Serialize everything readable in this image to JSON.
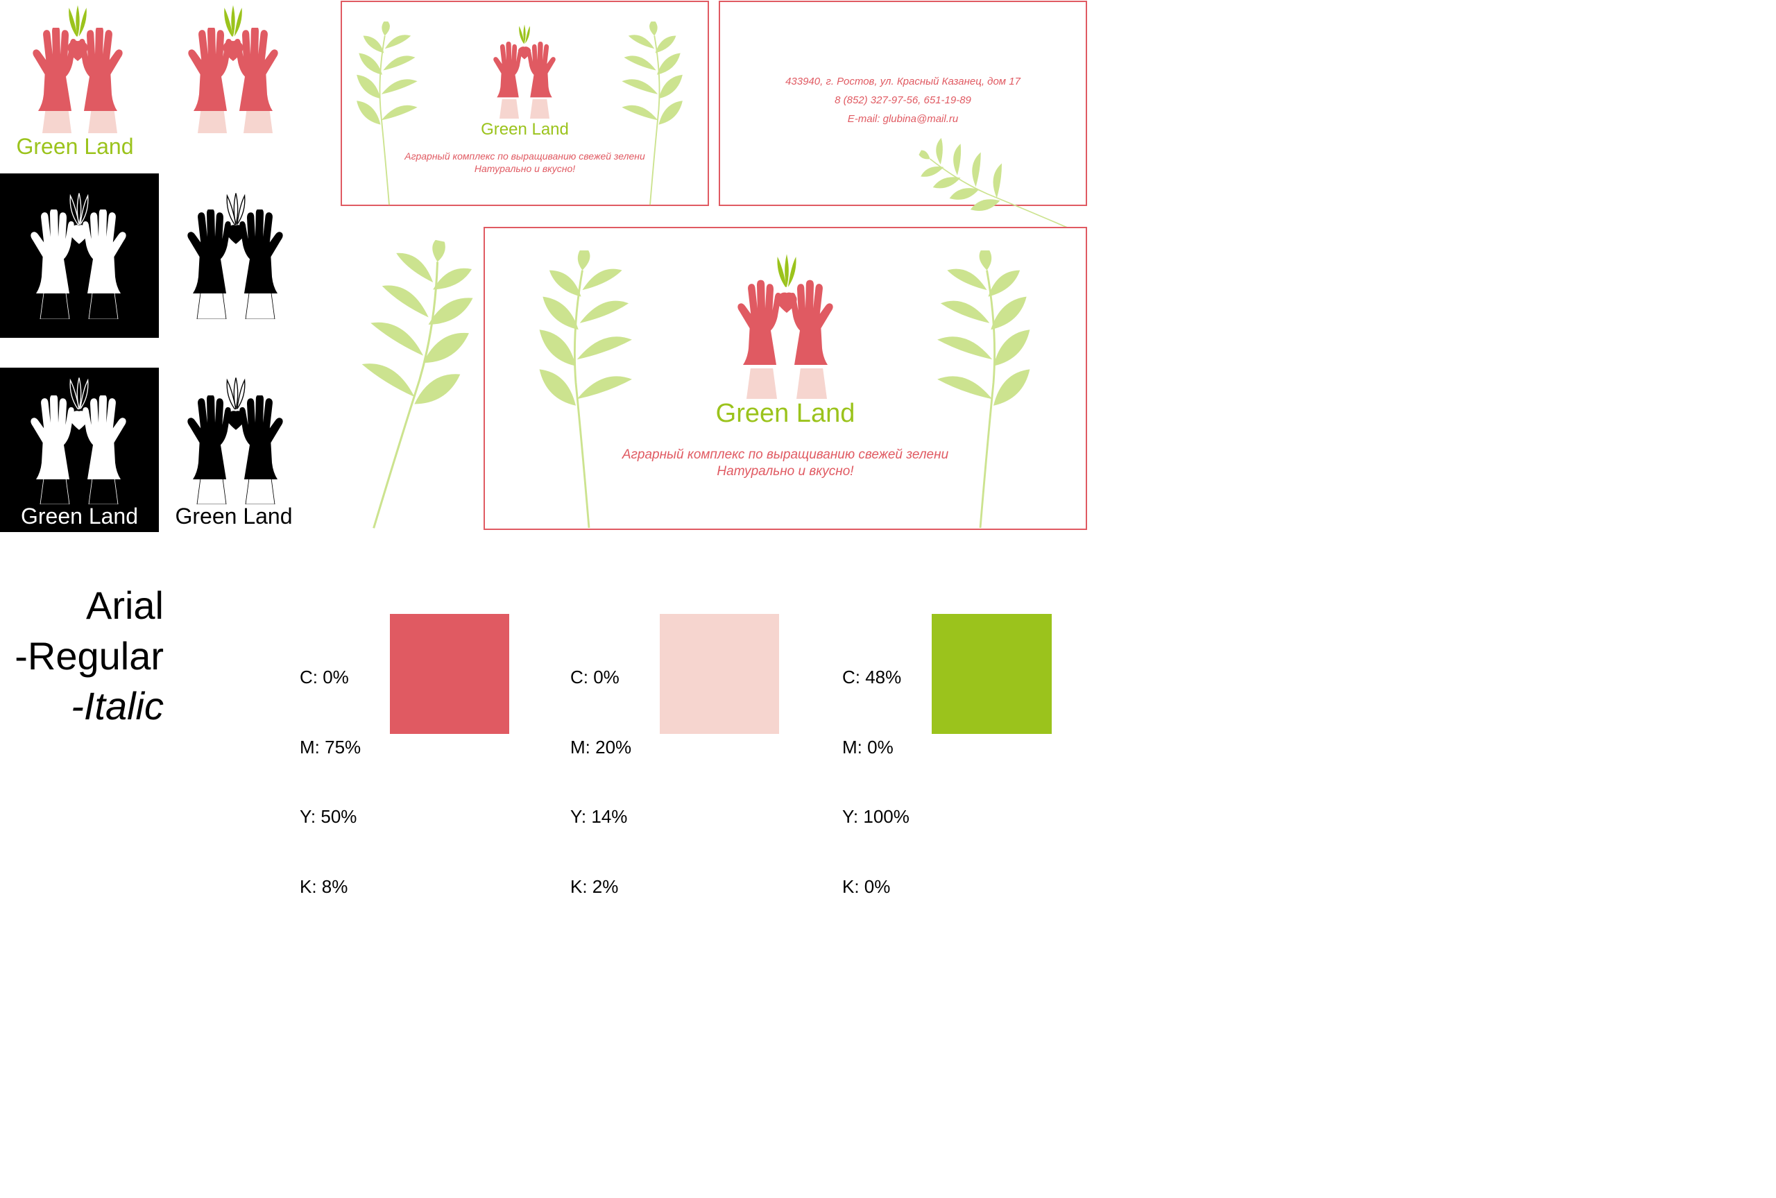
{
  "colors": {
    "coral": "#e05a62",
    "pink": "#f6d5cf",
    "green": "#9bc31c",
    "leaf": "#cce38f",
    "black": "#000000",
    "white": "#ffffff"
  },
  "logo": {
    "name": "Green Land"
  },
  "card_front": {
    "brand": "Green Land",
    "tagline": "Аграрный комплекс по выращиванию свежей зелени",
    "slogan": "Натурально и вкусно!"
  },
  "card_back": {
    "address": "433940, г. Ростов, ул. Красный Казанец, дом 17",
    "phone": "8 (852) 327-97-56, 651-19-89",
    "email": "E-mail: glubina@mail.ru"
  },
  "banner": {
    "brand": "Green Land",
    "tagline": "Аграрный комплекс по выращиванию свежей зелени",
    "slogan": "Натурально и вкусно!"
  },
  "fonts": {
    "family": "Arial",
    "regular": "-Regular",
    "italic": "-Italic"
  },
  "swatches": [
    {
      "c": "C: 0%",
      "m": "M: 75%",
      "y": "Y: 50%",
      "k": "K: 8%",
      "hex": "#e05a62"
    },
    {
      "c": "C: 0%",
      "m": "M: 20%",
      "y": "Y: 14%",
      "k": "K: 2%",
      "hex": "#f6d5cf"
    },
    {
      "c": "C: 48%",
      "m": "M: 0%",
      "y": "Y: 100%",
      "k": "K: 0%",
      "hex": "#9bc31c"
    }
  ]
}
